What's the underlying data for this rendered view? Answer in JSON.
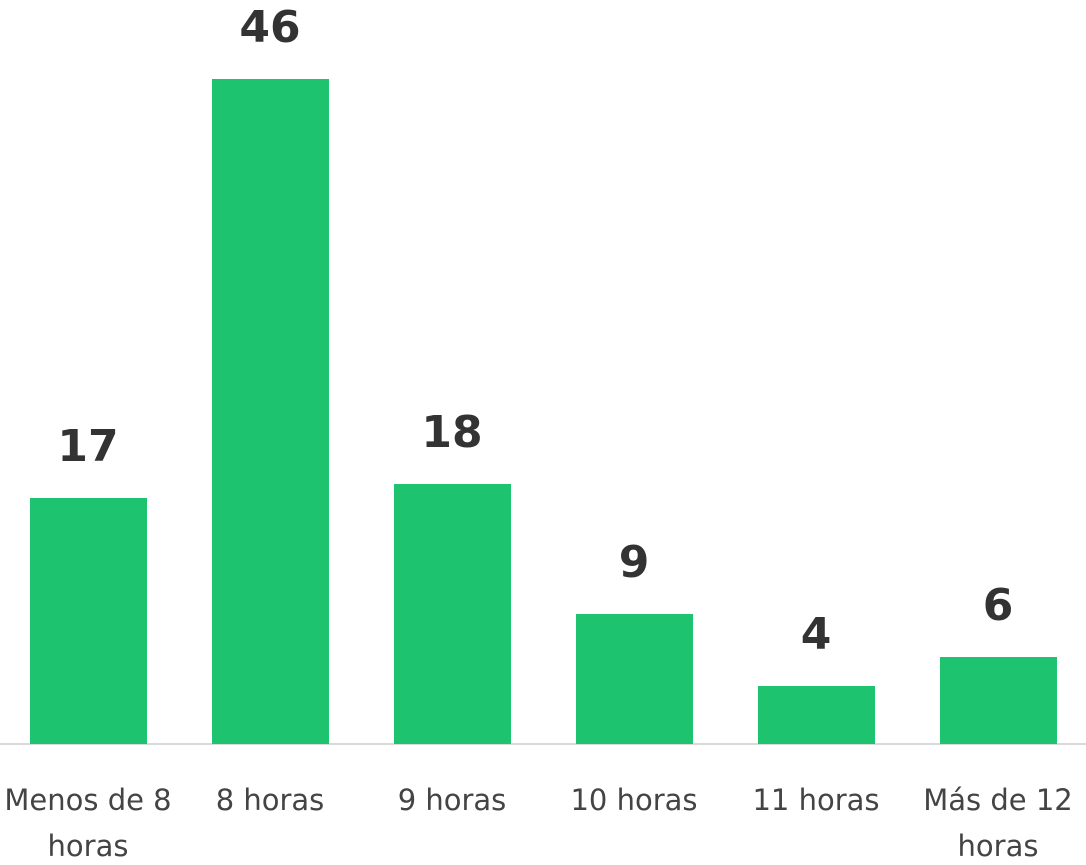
{
  "chart_data": {
    "type": "bar",
    "categories": [
      "Menos de 8 horas",
      "8 horas",
      "9 horas",
      "10 horas",
      "11 horas",
      "Más de 12 horas"
    ],
    "values": [
      17,
      46,
      18,
      9,
      4,
      6
    ],
    "color": "#1ec36f"
  }
}
